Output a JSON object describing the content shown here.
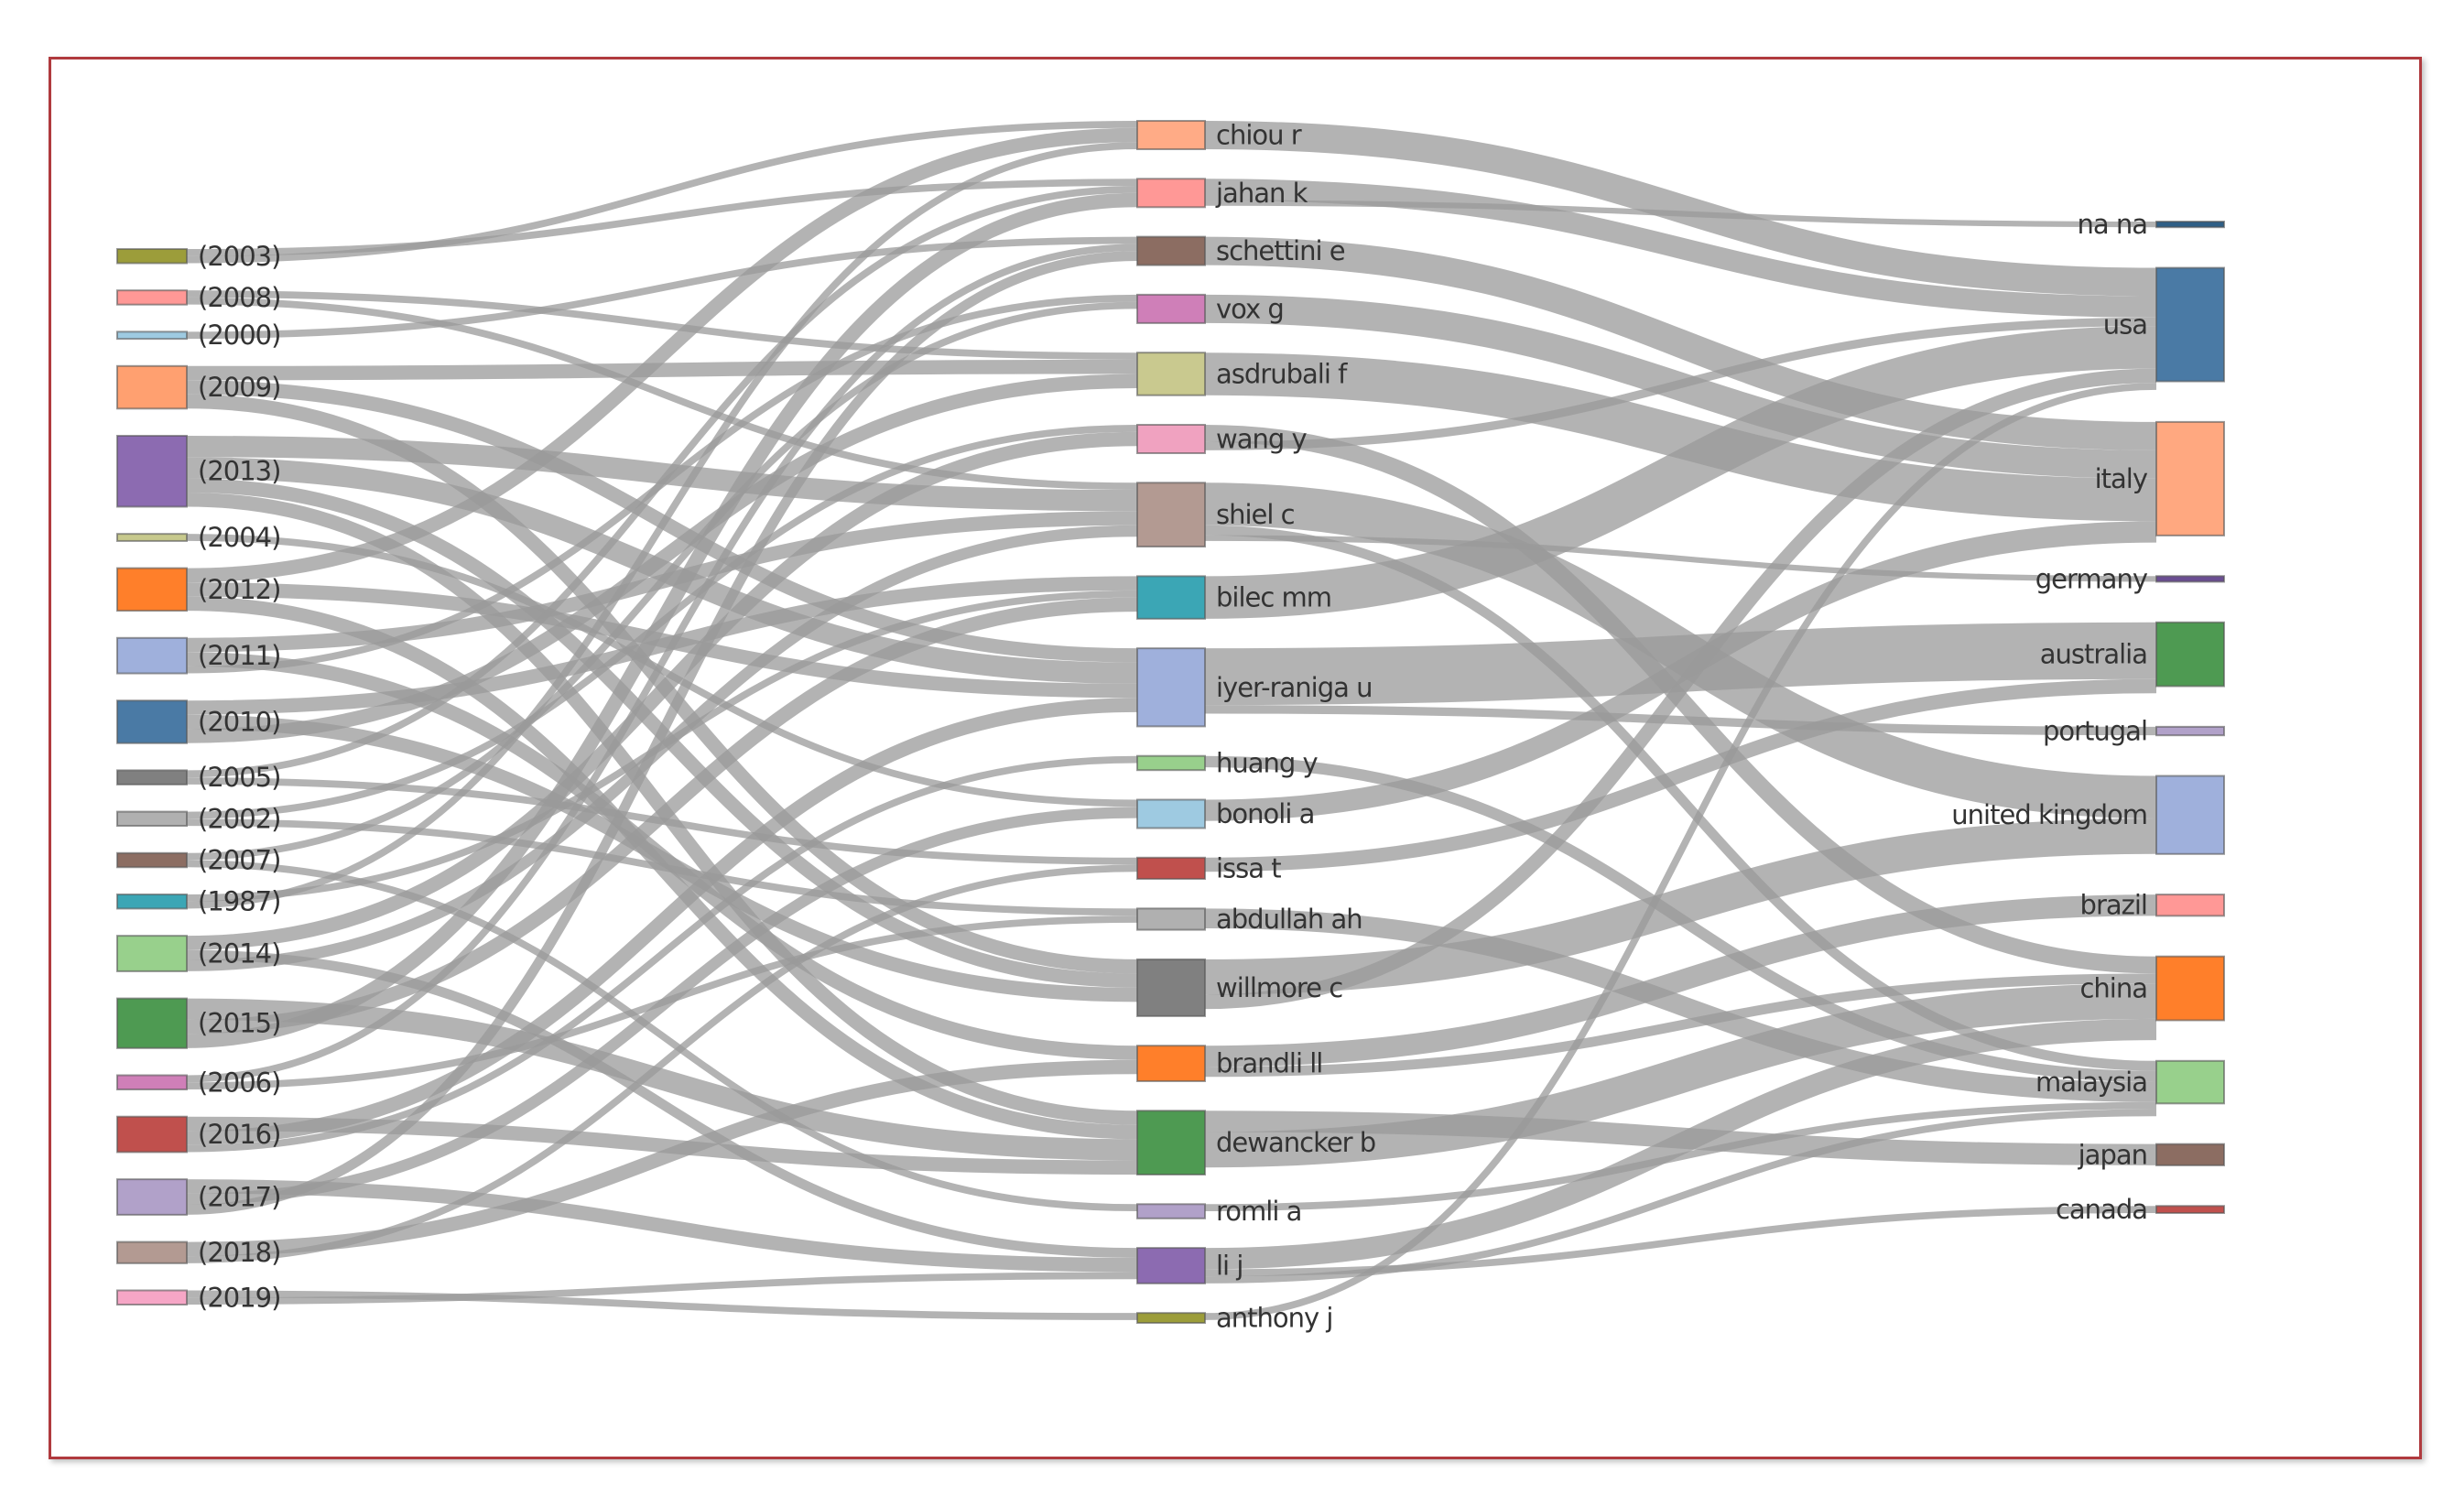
{
  "diagram": {
    "type": "sankey",
    "link_color": "#999999",
    "frame_color": "#b03a3e",
    "columns": {
      "years": [
        {
          "id": "y2003",
          "label": "(2003)",
          "color": "#9c9d3a",
          "value": 1
        },
        {
          "id": "y2008",
          "label": "(2008)",
          "color": "#ff9896",
          "value": 1
        },
        {
          "id": "y2000",
          "label": "(2000)",
          "color": "#9ecae1",
          "value": 0.5
        },
        {
          "id": "y2009",
          "label": "(2009)",
          "color": "#ffa070",
          "value": 3
        },
        {
          "id": "y2013",
          "label": "(2013)",
          "color": "#8c6bb1",
          "value": 5
        },
        {
          "id": "y2004",
          "label": "(2004)",
          "color": "#c7c98d",
          "value": 0.5
        },
        {
          "id": "y2012",
          "label": "(2012)",
          "color": "#ff7f2a",
          "value": 3
        },
        {
          "id": "y2011",
          "label": "(2011)",
          "color": "#9fb0dc",
          "value": 2.5
        },
        {
          "id": "y2010",
          "label": "(2010)",
          "color": "#4a7aa5",
          "value": 3
        },
        {
          "id": "y2005",
          "label": "(2005)",
          "color": "#808080",
          "value": 1
        },
        {
          "id": "y2002",
          "label": "(2002)",
          "color": "#b0b0b0",
          "value": 1
        },
        {
          "id": "y2007",
          "label": "(2007)",
          "color": "#8c6d62",
          "value": 1
        },
        {
          "id": "y1987",
          "label": "(1987)",
          "color": "#3ba6b5",
          "value": 1
        },
        {
          "id": "y2014",
          "label": "(2014)",
          "color": "#98d08c",
          "value": 2.5
        },
        {
          "id": "y2015",
          "label": "(2015)",
          "color": "#4e9a52",
          "value": 3.5
        },
        {
          "id": "y2006",
          "label": "(2006)",
          "color": "#cf7fb8",
          "value": 1
        },
        {
          "id": "y2016",
          "label": "(2016)",
          "color": "#c0504d",
          "value": 2.5
        },
        {
          "id": "y2017",
          "label": "(2017)",
          "color": "#b1a1c9",
          "value": 2.5
        },
        {
          "id": "y2018",
          "label": "(2018)",
          "color": "#b39a92",
          "value": 1.5
        },
        {
          "id": "y2019",
          "label": "(2019)",
          "color": "#f6a6c6",
          "value": 1
        }
      ],
      "authors": [
        {
          "id": "a_chiou",
          "label": "chiou r",
          "color": "#ffab86",
          "value": 2
        },
        {
          "id": "a_jahan",
          "label": "jahan k",
          "color": "#ff9896",
          "value": 2
        },
        {
          "id": "a_schettini",
          "label": "schettini e",
          "color": "#8c6d62",
          "value": 2
        },
        {
          "id": "a_vox",
          "label": "vox g",
          "color": "#cf7fb8",
          "value": 2
        },
        {
          "id": "a_asdrubali",
          "label": "asdrubali f",
          "color": "#c9c98f",
          "value": 3
        },
        {
          "id": "a_wang",
          "label": "wang y",
          "color": "#f0a2c0",
          "value": 2
        },
        {
          "id": "a_shiel",
          "label": "shiel c",
          "color": "#b39a92",
          "value": 4.5
        },
        {
          "id": "a_bilec",
          "label": "bilec mm",
          "color": "#3ba6b5",
          "value": 3
        },
        {
          "id": "a_iyer",
          "label": "iyer-raniga u",
          "color": "#9fb0dc",
          "value": 5.5
        },
        {
          "id": "a_huang",
          "label": "huang y",
          "color": "#98d08c",
          "value": 1
        },
        {
          "id": "a_bonoli",
          "label": "bonoli a",
          "color": "#9ecae1",
          "value": 2
        },
        {
          "id": "a_issa",
          "label": "issa t",
          "color": "#c0504d",
          "value": 1.5
        },
        {
          "id": "a_abdullah",
          "label": "abdullah ah",
          "color": "#b0b0b0",
          "value": 1.5
        },
        {
          "id": "a_willmore",
          "label": "willmore c",
          "color": "#808080",
          "value": 4
        },
        {
          "id": "a_brandli",
          "label": "brandli ll",
          "color": "#ff7f2a",
          "value": 2.5
        },
        {
          "id": "a_dewancker",
          "label": "dewancker b",
          "color": "#4e9a52",
          "value": 4.5
        },
        {
          "id": "a_romli",
          "label": "romli a",
          "color": "#b1a1c9",
          "value": 1
        },
        {
          "id": "a_li",
          "label": "li j",
          "color": "#8c6bb1",
          "value": 2.5
        },
        {
          "id": "a_anthony",
          "label": "anthony j",
          "color": "#9c9d3a",
          "value": 0.7
        }
      ],
      "countries": [
        {
          "id": "c_nana",
          "label": "na na",
          "color": "#2f5f86",
          "value": 0.4
        },
        {
          "id": "c_usa",
          "label": "usa",
          "color": "#4a7aa5",
          "value": 8
        },
        {
          "id": "c_italy",
          "label": "italy",
          "color": "#ffa880",
          "value": 8
        },
        {
          "id": "c_germany",
          "label": "germany",
          "color": "#6b4e93",
          "value": 0.4
        },
        {
          "id": "c_australia",
          "label": "australia",
          "color": "#4e9a52",
          "value": 4.5
        },
        {
          "id": "c_portugal",
          "label": "portugal",
          "color": "#b1a1c9",
          "value": 0.6
        },
        {
          "id": "c_uk",
          "label": "united kingdom",
          "color": "#9fb0dc",
          "value": 5.5
        },
        {
          "id": "c_brazil",
          "label": "brazil",
          "color": "#ff9896",
          "value": 1.5
        },
        {
          "id": "c_china",
          "label": "china",
          "color": "#ff7f2a",
          "value": 4.5
        },
        {
          "id": "c_malaysia",
          "label": "malaysia",
          "color": "#98d08c",
          "value": 3
        },
        {
          "id": "c_japan",
          "label": "japan",
          "color": "#8c6d62",
          "value": 1.5
        },
        {
          "id": "c_canada",
          "label": "canada",
          "color": "#c0504d",
          "value": 0.5
        }
      ]
    },
    "links": [
      [
        "y2003",
        "a_jahan",
        0.5
      ],
      [
        "y2003",
        "a_chiou",
        0.5
      ],
      [
        "y2008",
        "a_asdrubali",
        0.5
      ],
      [
        "y2008",
        "a_shiel",
        0.5
      ],
      [
        "y2000",
        "a_schettini",
        0.5
      ],
      [
        "y2009",
        "a_asdrubali",
        1
      ],
      [
        "y2009",
        "a_iyer",
        1
      ],
      [
        "y2009",
        "a_willmore",
        1
      ],
      [
        "y2013",
        "a_shiel",
        1.5
      ],
      [
        "y2013",
        "a_iyer",
        1.5
      ],
      [
        "y2013",
        "a_willmore",
        1
      ],
      [
        "y2013",
        "a_dewancker",
        1
      ],
      [
        "y2004",
        "a_bonoli",
        0.5
      ],
      [
        "y2012",
        "a_chiou",
        1
      ],
      [
        "y2012",
        "a_iyer",
        1
      ],
      [
        "y2012",
        "a_dewancker",
        1
      ],
      [
        "y2011",
        "a_shiel",
        1
      ],
      [
        "y2011",
        "a_brandli",
        1
      ],
      [
        "y2011",
        "a_vox",
        0.5
      ],
      [
        "y2010",
        "a_bilec",
        1
      ],
      [
        "y2010",
        "a_willmore",
        1
      ],
      [
        "y2010",
        "a_asdrubali",
        1
      ],
      [
        "y2005",
        "a_jahan",
        0.5
      ],
      [
        "y2005",
        "a_issa",
        0.5
      ],
      [
        "y2002",
        "a_wang",
        0.5
      ],
      [
        "y2002",
        "a_abdullah",
        0.5
      ],
      [
        "y2007",
        "a_vox",
        0.5
      ],
      [
        "y2007",
        "a_romli",
        0.5
      ],
      [
        "y1987",
        "a_bilec",
        0.5
      ],
      [
        "y1987",
        "a_chiou",
        0.5
      ],
      [
        "y2014",
        "a_wang",
        1
      ],
      [
        "y2014",
        "a_li",
        0.7
      ],
      [
        "y2014",
        "a_shiel",
        0.8
      ],
      [
        "y2015",
        "a_dewancker",
        1.5
      ],
      [
        "y2015",
        "a_bilec",
        1
      ],
      [
        "y2015",
        "a_jahan",
        1
      ],
      [
        "y2006",
        "a_schettini",
        0.5
      ],
      [
        "y2006",
        "a_abdullah",
        0.5
      ],
      [
        "y2016",
        "a_dewancker",
        1
      ],
      [
        "y2016",
        "a_iyer",
        1
      ],
      [
        "y2016",
        "a_huang",
        0.5
      ],
      [
        "y2017",
        "a_li",
        1
      ],
      [
        "y2017",
        "a_bonoli",
        0.8
      ],
      [
        "y2017",
        "a_schettini",
        0.7
      ],
      [
        "y2018",
        "a_brandli",
        1
      ],
      [
        "y2018",
        "a_issa",
        0.5
      ],
      [
        "y2019",
        "a_anthony",
        0.5
      ],
      [
        "y2019",
        "a_li",
        0.5
      ],
      [
        "a_chiou",
        "c_usa",
        2
      ],
      [
        "a_jahan",
        "c_usa",
        1.5
      ],
      [
        "a_jahan",
        "c_nana",
        0.4
      ],
      [
        "a_schettini",
        "c_italy",
        2
      ],
      [
        "a_vox",
        "c_italy",
        2
      ],
      [
        "a_asdrubali",
        "c_italy",
        3
      ],
      [
        "a_wang",
        "c_china",
        1.2
      ],
      [
        "a_wang",
        "c_usa",
        0.6
      ],
      [
        "a_shiel",
        "c_uk",
        3
      ],
      [
        "a_shiel",
        "c_malaysia",
        0.7
      ],
      [
        "a_shiel",
        "c_germany",
        0.4
      ],
      [
        "a_bilec",
        "c_usa",
        3
      ],
      [
        "a_iyer",
        "c_australia",
        4
      ],
      [
        "a_iyer",
        "c_portugal",
        0.6
      ],
      [
        "a_huang",
        "c_malaysia",
        0.8
      ],
      [
        "a_bonoli",
        "c_italy",
        1.5
      ],
      [
        "a_issa",
        "c_australia",
        1
      ],
      [
        "a_abdullah",
        "c_malaysia",
        1.4
      ],
      [
        "a_willmore",
        "c_uk",
        2.5
      ],
      [
        "a_willmore",
        "c_usa",
        1
      ],
      [
        "a_brandli",
        "c_brazil",
        1.5
      ],
      [
        "a_brandli",
        "c_china",
        0.7
      ],
      [
        "a_dewancker",
        "c_japan",
        1.5
      ],
      [
        "a_dewancker",
        "c_china",
        2.5
      ],
      [
        "a_romli",
        "c_malaysia",
        0.5
      ],
      [
        "a_li",
        "c_china",
        1.5
      ],
      [
        "a_li",
        "c_canada",
        0.5
      ],
      [
        "a_li",
        "c_malaysia",
        0.5
      ],
      [
        "a_anthony",
        "c_usa",
        0.5
      ]
    ]
  }
}
